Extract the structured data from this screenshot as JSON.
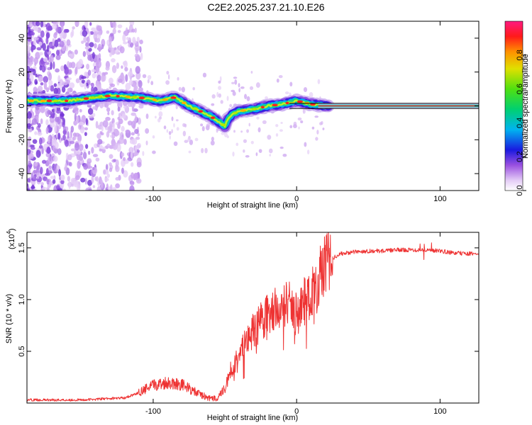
{
  "figure": {
    "title": "C2E2.2025.237.21.10.E26"
  },
  "chart_data": [
    {
      "type": "heatmap",
      "name": "spectrogram",
      "xlabel": "Height of straight line (km)",
      "ylabel": "Frequency (Hz)",
      "xlim": [
        -188,
        127
      ],
      "ylim": [
        -50,
        50
      ],
      "xticks": [
        -100,
        0,
        100
      ],
      "yticks": [
        -40,
        -20,
        0,
        20,
        40
      ],
      "reference_line_hz": [
        1.5,
        -1.5
      ],
      "ridge": {
        "x": [
          -188,
          -160,
          -140,
          -130,
          -110,
          -95,
          -85,
          -75,
          -65,
          -60,
          -55,
          -50,
          -48,
          -45,
          -40,
          -30,
          -20,
          -10,
          -5,
          0,
          5,
          10,
          20,
          127
        ],
        "y": [
          3,
          3,
          5,
          6,
          5,
          3,
          5,
          0,
          -4,
          -6,
          -9,
          -12,
          -8,
          -5,
          -3,
          -2,
          0,
          1,
          2,
          3,
          2,
          1,
          0,
          0
        ]
      },
      "colorbar": {
        "label": "Normalized spectral amplitude",
        "range": [
          0,
          1
        ],
        "ticks": [
          0.0,
          0.2,
          0.4,
          0.6,
          0.8
        ]
      }
    },
    {
      "type": "line",
      "name": "snr",
      "xlabel": "Height of straight line (km)",
      "ylabel": "SNR (10 * v/v)",
      "yscale_label": "(x10",
      "yscale_exp": "4",
      "xlim": [
        -188,
        127
      ],
      "ylim": [
        0.0,
        1.65
      ],
      "xticks": [
        -100,
        0,
        100
      ],
      "yticks": [
        0.5,
        1.0,
        1.5
      ],
      "color": "#ee3333",
      "envelope": {
        "x": [
          -188,
          -150,
          -120,
          -110,
          -100,
          -90,
          -80,
          -70,
          -60,
          -55,
          -50,
          -45,
          -40,
          -35,
          -30,
          -25,
          -20,
          -15,
          -10,
          -5,
          0,
          5,
          10,
          15,
          20,
          25,
          30,
          40,
          50,
          60,
          70,
          80,
          90,
          100,
          110,
          127
        ],
        "y": [
          0.03,
          0.03,
          0.05,
          0.1,
          0.17,
          0.2,
          0.18,
          0.1,
          0.04,
          0.05,
          0.15,
          0.35,
          0.45,
          0.6,
          0.7,
          0.78,
          0.85,
          0.9,
          0.95,
          0.95,
          0.85,
          0.98,
          1.05,
          1.2,
          1.35,
          1.4,
          1.44,
          1.46,
          1.47,
          1.47,
          1.48,
          1.48,
          1.48,
          1.47,
          1.45,
          1.44
        ]
      }
    }
  ]
}
